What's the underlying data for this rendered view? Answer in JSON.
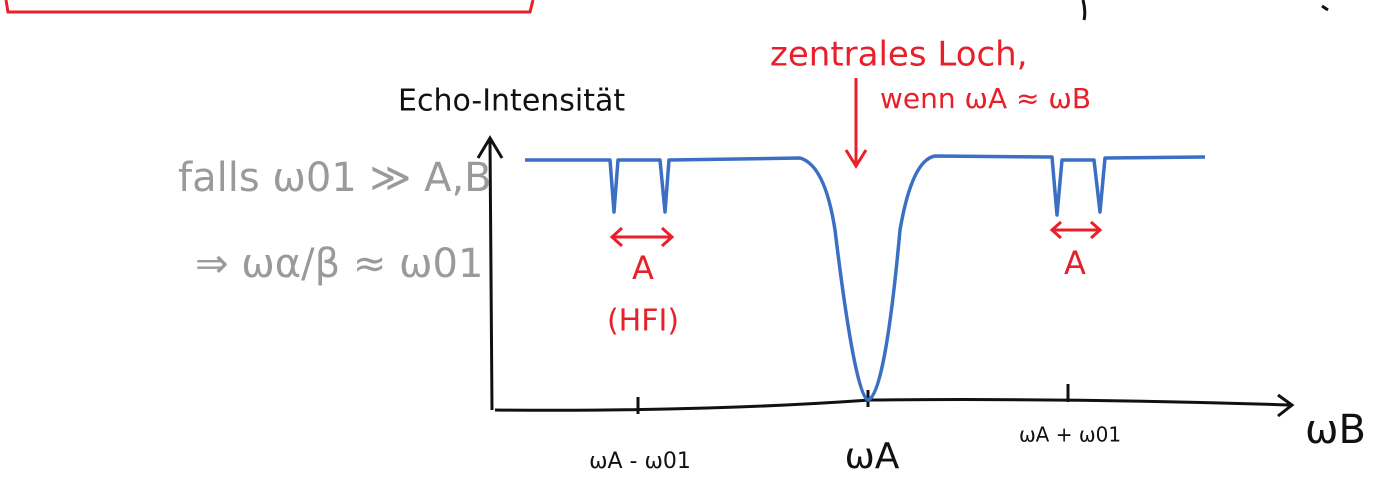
{
  "notes": {
    "condition": "falls ω01 ≫ A,B",
    "consequence": "⇒ ωα/β ≈ ω01"
  },
  "sketch": {
    "y_label": "Echo-Intensität",
    "x_label": "ωB",
    "x_ticks": [
      "ωA - ω01",
      "ωA",
      "ωA + ω01"
    ],
    "annotations": {
      "hole": "zentrales Loch,",
      "hole_condition": "wenn ωA ≈ ωB",
      "left_splitting": "A",
      "left_splitting_note": "(HFI)",
      "right_splitting": "A"
    }
  }
}
